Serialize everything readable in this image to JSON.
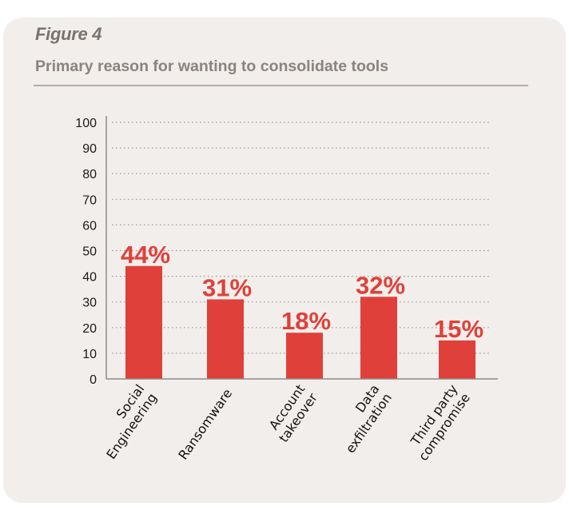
{
  "figure": {
    "label": "Figure 4",
    "title": "Primary reason for wanting to consolidate tools"
  },
  "colors": {
    "bar": "#e0403a",
    "label": "#e0403a",
    "card_bg": "#f2eeeb",
    "grid": "#9a9592",
    "axis": "#8f8a87"
  },
  "chart_data": {
    "type": "bar",
    "title": "Primary reason for wanting to consolidate tools",
    "xlabel": "",
    "ylabel": "",
    "ylim": [
      0,
      100
    ],
    "yticks": [
      0,
      10,
      20,
      30,
      40,
      50,
      60,
      70,
      80,
      90,
      100
    ],
    "ytick_labels": [
      "0",
      "10",
      "20",
      "30",
      "40",
      "50",
      "60",
      "70",
      "80",
      "90",
      "100"
    ],
    "grid": true,
    "grid_style": "dotted",
    "categories": [
      [
        "Social",
        "Engineering"
      ],
      [
        "Ransomware"
      ],
      [
        "Account",
        "takeover"
      ],
      [
        "Data",
        "exfiltration"
      ],
      [
        "Third party",
        "compromise"
      ]
    ],
    "values": [
      44,
      31,
      18,
      32,
      15
    ],
    "data_labels": [
      "44%",
      "31%",
      "18%",
      "32%",
      "15%"
    ],
    "unit": "%"
  }
}
